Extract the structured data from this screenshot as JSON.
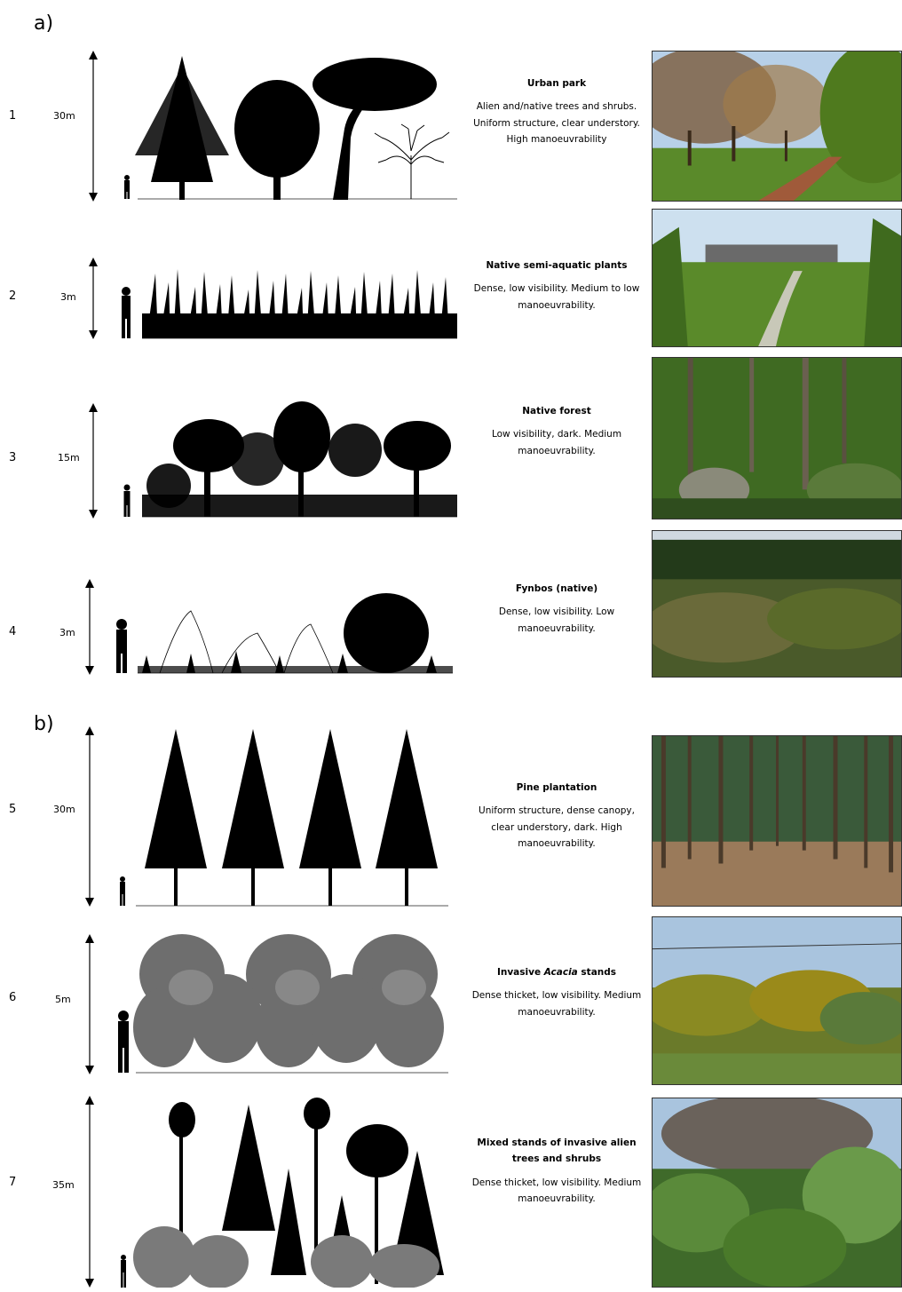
{
  "section_a": "a)",
  "section_b": "b)",
  "rows": [
    {
      "num": "1",
      "height": "30m",
      "title": "Urban park",
      "title_pre": "",
      "title_em": "",
      "title_post": "",
      "desc": "Alien and/native trees and shrubs. Uniform structure, clear understory. High manoeuvrability",
      "photo": "urban-park-photo"
    },
    {
      "num": "2",
      "height": "3m",
      "title": "Native semi-aquatic plants",
      "desc": "Dense, low visibility. Medium to low manoeuvrability.",
      "photo": "semi-aquatic-photo"
    },
    {
      "num": "3",
      "height": "15m",
      "title": "Native forest",
      "desc": "Low visibility, dark. Medium manoeuvrability.",
      "photo": "native-forest-photo"
    },
    {
      "num": "4",
      "height": "3m",
      "title": "Fynbos (native)",
      "desc": "Dense, low visibility. Low manoeuvrability.",
      "photo": "fynbos-photo"
    },
    {
      "num": "5",
      "height": "30m",
      "title": "Pine plantation",
      "desc": "Uniform structure, dense canopy, clear understory, dark. High manoeuvrability.",
      "photo": "pine-plantation-photo"
    },
    {
      "num": "6",
      "height": "5m",
      "title_pre": "Invasive ",
      "title_em": "Acacia",
      "title_post": " stands",
      "desc": "Dense thicket, low visibility. Medium manoeuvrability.",
      "photo": "acacia-photo"
    },
    {
      "num": "7",
      "height": "35m",
      "title": "Mixed stands of invasive alien trees and shrubs",
      "desc": "Dense thicket, low visibility. Medium manoeuvrability.",
      "photo": "mixed-stands-photo"
    }
  ],
  "colors": {
    "silhouette": "#000000",
    "acacia_grey": "#777777",
    "sky": "#9fc3e6",
    "grass": "#4f8a2e",
    "forest_dark": "#2f4d1e"
  }
}
